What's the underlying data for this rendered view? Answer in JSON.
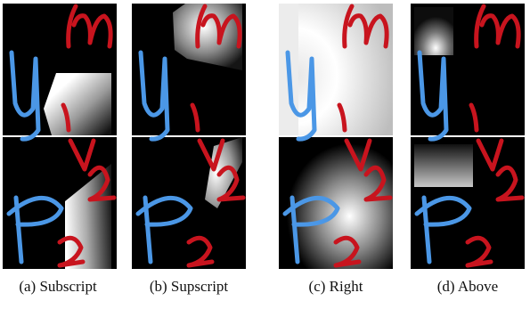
{
  "figure": {
    "panels": [
      {
        "caption": "(a) Subscript",
        "relation": "Subscript"
      },
      {
        "caption": "(b) Supscript",
        "relation": "Supscript"
      },
      {
        "caption": "(c) Right",
        "relation": "Right"
      },
      {
        "caption": "(d) Above",
        "relation": "Above"
      }
    ],
    "colors": {
      "background": "#000000",
      "ink_blue": "#4b97e6",
      "ink_red": "#c8141e",
      "attention": "#ffffff"
    }
  }
}
